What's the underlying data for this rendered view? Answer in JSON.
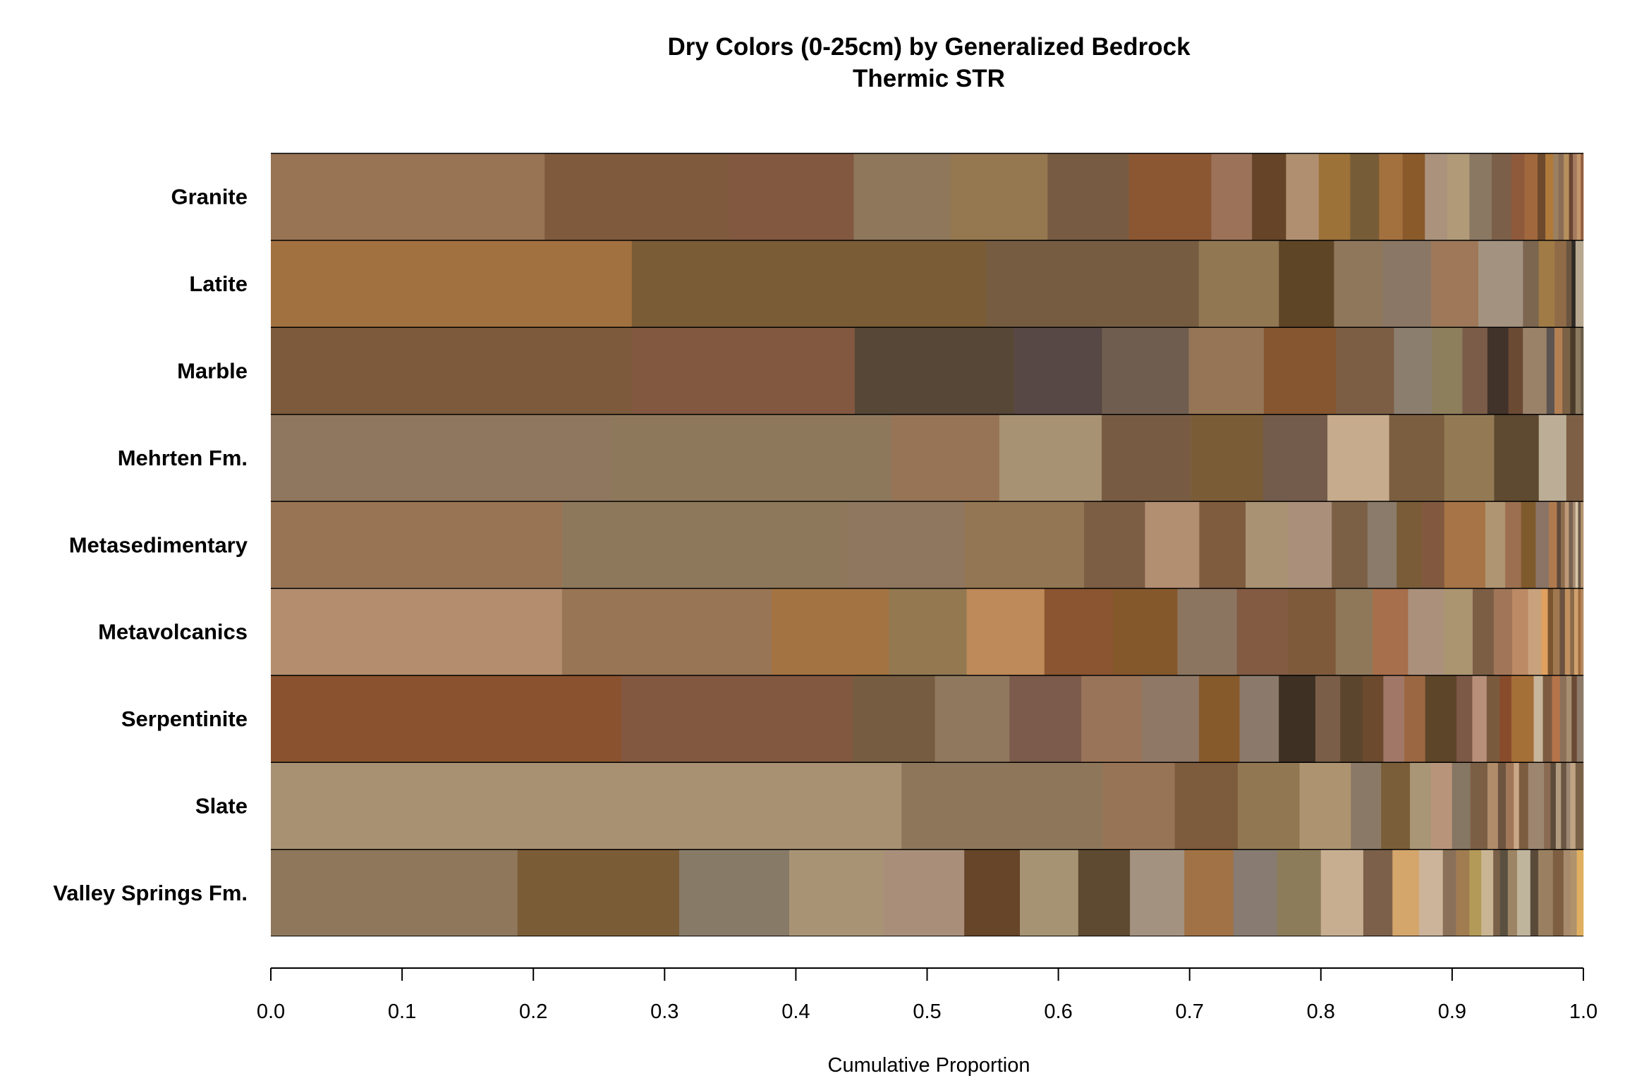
{
  "chart_data": {
    "type": "bar",
    "orientation": "horizontal-stacked",
    "title": "Dry Colors (0-25cm) by Generalized Bedrock",
    "subtitle": "Thermic STR",
    "xlabel": "Cumulative Proportion",
    "xlim": [
      0,
      1
    ],
    "xticks": [
      "0.0",
      "0.1",
      "0.2",
      "0.3",
      "0.4",
      "0.5",
      "0.6",
      "0.7",
      "0.8",
      "0.9",
      "1.0"
    ],
    "grid": false,
    "categories": [
      "Granite",
      "Latite",
      "Marble",
      "Mehrten Fm.",
      "Metasedimentary",
      "Metavolcanics",
      "Serpentinite",
      "Slate",
      "Valley Springs Fm."
    ],
    "stacks": [
      {
        "name": "Granite",
        "segments": [
          {
            "value": 0.209,
            "color": "#987454"
          },
          {
            "value": 0.141,
            "color": "#7f5a3c"
          },
          {
            "value": 0.095,
            "color": "#825841"
          },
          {
            "value": 0.074,
            "color": "#8f775c"
          },
          {
            "value": 0.074,
            "color": "#957750"
          },
          {
            "value": 0.062,
            "color": "#775b42"
          },
          {
            "value": 0.063,
            "color": "#8b5733"
          },
          {
            "value": 0.031,
            "color": "#9c7259"
          },
          {
            "value": 0.026,
            "color": "#654428"
          },
          {
            "value": 0.025,
            "color": "#b08f70"
          },
          {
            "value": 0.024,
            "color": "#9d7238"
          },
          {
            "value": 0.022,
            "color": "#775c38"
          },
          {
            "value": 0.018,
            "color": "#a3713e"
          },
          {
            "value": 0.017,
            "color": "#8a5a2b"
          },
          {
            "value": 0.017,
            "color": "#ab927c"
          },
          {
            "value": 0.017,
            "color": "#b09a78"
          },
          {
            "value": 0.017,
            "color": "#8a7862"
          },
          {
            "value": 0.015,
            "color": "#7c5f48"
          },
          {
            "value": 0.01,
            "color": "#8f5a3c"
          },
          {
            "value": 0.01,
            "color": "#a0683c"
          },
          {
            "value": 0.006,
            "color": "#6d4a2e"
          },
          {
            "value": 0.006,
            "color": "#b07a3a"
          },
          {
            "value": 0.004,
            "color": "#9a8060"
          },
          {
            "value": 0.004,
            "color": "#8a6d55"
          },
          {
            "value": 0.004,
            "color": "#b58f5c"
          },
          {
            "value": 0.003,
            "color": "#6a4530"
          },
          {
            "value": 0.003,
            "color": "#a47a60"
          },
          {
            "value": 0.003,
            "color": "#c3966a"
          },
          {
            "value": 0.002,
            "color": "#935e3e"
          }
        ]
      },
      {
        "name": "Latite",
        "segments": [
          {
            "value": 0.275,
            "color": "#a27140"
          },
          {
            "value": 0.27,
            "color": "#7a5c36"
          },
          {
            "value": 0.162,
            "color": "#765d42"
          },
          {
            "value": 0.061,
            "color": "#927753"
          },
          {
            "value": 0.042,
            "color": "#5e4526"
          },
          {
            "value": 0.037,
            "color": "#8f775c"
          },
          {
            "value": 0.037,
            "color": "#8a7765"
          },
          {
            "value": 0.036,
            "color": "#9e7859"
          },
          {
            "value": 0.034,
            "color": "#a39280"
          },
          {
            "value": 0.012,
            "color": "#7c6650"
          },
          {
            "value": 0.012,
            "color": "#a07b46"
          },
          {
            "value": 0.009,
            "color": "#8f6b48"
          },
          {
            "value": 0.004,
            "color": "#6a5540"
          },
          {
            "value": 0.003,
            "color": "#2f2a26"
          },
          {
            "value": 0.006,
            "color": "#b8a890"
          }
        ]
      },
      {
        "name": "Marble",
        "segments": [
          {
            "value": 0.275,
            "color": "#7d5a3b"
          },
          {
            "value": 0.169,
            "color": "#825841"
          },
          {
            "value": 0.121,
            "color": "#574736"
          },
          {
            "value": 0.067,
            "color": "#574745"
          },
          {
            "value": 0.066,
            "color": "#6f5e4f"
          },
          {
            "value": 0.057,
            "color": "#957556"
          },
          {
            "value": 0.055,
            "color": "#855630"
          },
          {
            "value": 0.044,
            "color": "#7c5e45"
          },
          {
            "value": 0.029,
            "color": "#8b7e6e"
          },
          {
            "value": 0.023,
            "color": "#8d7e5c"
          },
          {
            "value": 0.019,
            "color": "#7b5c49"
          },
          {
            "value": 0.016,
            "color": "#41322a"
          },
          {
            "value": 0.011,
            "color": "#6b4a33"
          },
          {
            "value": 0.018,
            "color": "#9a8268"
          },
          {
            "value": 0.006,
            "color": "#5c5450"
          },
          {
            "value": 0.006,
            "color": "#b38054"
          },
          {
            "value": 0.006,
            "color": "#7b6145"
          },
          {
            "value": 0.004,
            "color": "#4a3a2a"
          },
          {
            "value": 0.004,
            "color": "#8b7a60"
          },
          {
            "value": 0.002,
            "color": "#6a5b48"
          }
        ]
      },
      {
        "name": "Mehrten Fm.",
        "segments": [
          {
            "value": 0.259,
            "color": "#8f765e"
          },
          {
            "value": 0.214,
            "color": "#8e785c"
          },
          {
            "value": 0.082,
            "color": "#987456"
          },
          {
            "value": 0.078,
            "color": "#a89274"
          },
          {
            "value": 0.068,
            "color": "#775c43"
          },
          {
            "value": 0.055,
            "color": "#7a5c37"
          },
          {
            "value": 0.049,
            "color": "#735c4c"
          },
          {
            "value": 0.047,
            "color": "#c6ab8c"
          },
          {
            "value": 0.042,
            "color": "#7a5e3f"
          },
          {
            "value": 0.038,
            "color": "#937a55"
          },
          {
            "value": 0.034,
            "color": "#5e4a31"
          },
          {
            "value": 0.021,
            "color": "#bcad96"
          },
          {
            "value": 0.013,
            "color": "#7c5f45"
          }
        ]
      },
      {
        "name": "Metasedimentary",
        "segments": [
          {
            "value": 0.22,
            "color": "#987455"
          },
          {
            "value": 0.215,
            "color": "#8e785c"
          },
          {
            "value": 0.089,
            "color": "#8f765e"
          },
          {
            "value": 0.09,
            "color": "#937653"
          },
          {
            "value": 0.046,
            "color": "#7c5e45"
          },
          {
            "value": 0.041,
            "color": "#b38f72"
          },
          {
            "value": 0.035,
            "color": "#7f5c3e"
          },
          {
            "value": 0.032,
            "color": "#a99273"
          },
          {
            "value": 0.033,
            "color": "#aa8f7a"
          },
          {
            "value": 0.027,
            "color": "#7b6046"
          },
          {
            "value": 0.022,
            "color": "#8a7b6a"
          },
          {
            "value": 0.019,
            "color": "#7a5d38"
          },
          {
            "value": 0.017,
            "color": "#82593f"
          },
          {
            "value": 0.031,
            "color": "#a67446"
          },
          {
            "value": 0.015,
            "color": "#b09572"
          },
          {
            "value": 0.012,
            "color": "#9b6f50"
          },
          {
            "value": 0.011,
            "color": "#7f5a2d"
          },
          {
            "value": 0.01,
            "color": "#8b7466"
          },
          {
            "value": 0.006,
            "color": "#b07a4f"
          },
          {
            "value": 0.003,
            "color": "#5f4a3b"
          },
          {
            "value": 0.003,
            "color": "#8f6e4e"
          },
          {
            "value": 0.003,
            "color": "#c09a78"
          },
          {
            "value": 0.003,
            "color": "#786350"
          },
          {
            "value": 0.002,
            "color": "#a58a70"
          },
          {
            "value": 0.002,
            "color": "#d8c4a6"
          },
          {
            "value": 0.002,
            "color": "#6c5a48"
          },
          {
            "value": 0.002,
            "color": "#b69470"
          }
        ]
      },
      {
        "name": "Metavolcanics",
        "segments": [
          {
            "value": 0.221,
            "color": "#b38d6e"
          },
          {
            "value": 0.159,
            "color": "#987555"
          },
          {
            "value": 0.089,
            "color": "#a37342"
          },
          {
            "value": 0.059,
            "color": "#937850"
          },
          {
            "value": 0.059,
            "color": "#bf8a59"
          },
          {
            "value": 0.052,
            "color": "#8a5530"
          },
          {
            "value": 0.049,
            "color": "#85582c"
          },
          {
            "value": 0.045,
            "color": "#8c7560"
          },
          {
            "value": 0.039,
            "color": "#835a42"
          },
          {
            "value": 0.036,
            "color": "#7e5a3b"
          },
          {
            "value": 0.028,
            "color": "#8f785a"
          },
          {
            "value": 0.027,
            "color": "#a76f4b"
          },
          {
            "value": 0.027,
            "color": "#ab917c"
          },
          {
            "value": 0.022,
            "color": "#ab9470"
          },
          {
            "value": 0.016,
            "color": "#7c5e45"
          },
          {
            "value": 0.014,
            "color": "#a17658"
          },
          {
            "value": 0.012,
            "color": "#bc8a65"
          },
          {
            "value": 0.01,
            "color": "#c8a27c"
          },
          {
            "value": 0.005,
            "color": "#e0a060"
          },
          {
            "value": 0.004,
            "color": "#7a5530"
          },
          {
            "value": 0.005,
            "color": "#a07850"
          },
          {
            "value": 0.004,
            "color": "#6b5240"
          },
          {
            "value": 0.004,
            "color": "#c09060"
          },
          {
            "value": 0.003,
            "color": "#8a6a48"
          },
          {
            "value": 0.003,
            "color": "#d0a070"
          },
          {
            "value": 0.002,
            "color": "#9e6a3c"
          },
          {
            "value": 0.002,
            "color": "#b58a60"
          }
        ]
      },
      {
        "name": "Serpentinite",
        "segments": [
          {
            "value": 0.268,
            "color": "#8a522e"
          },
          {
            "value": 0.177,
            "color": "#825841"
          },
          {
            "value": 0.063,
            "color": "#765d42"
          },
          {
            "value": 0.057,
            "color": "#8f785e"
          },
          {
            "value": 0.055,
            "color": "#7c5b4c"
          },
          {
            "value": 0.046,
            "color": "#9a7459"
          },
          {
            "value": 0.044,
            "color": "#8f7866"
          },
          {
            "value": 0.031,
            "color": "#875a2b"
          },
          {
            "value": 0.03,
            "color": "#8b7a6b"
          },
          {
            "value": 0.028,
            "color": "#3e3023"
          },
          {
            "value": 0.019,
            "color": "#7a5e47"
          },
          {
            "value": 0.017,
            "color": "#5c452d"
          },
          {
            "value": 0.016,
            "color": "#6b4a2e"
          },
          {
            "value": 0.016,
            "color": "#a17868"
          },
          {
            "value": 0.016,
            "color": "#9a6742"
          },
          {
            "value": 0.024,
            "color": "#5c4528"
          },
          {
            "value": 0.012,
            "color": "#7c5847"
          },
          {
            "value": 0.011,
            "color": "#b8907a"
          },
          {
            "value": 0.01,
            "color": "#7a5a3c"
          },
          {
            "value": 0.009,
            "color": "#884c2c"
          },
          {
            "value": 0.017,
            "color": "#a56f38"
          },
          {
            "value": 0.007,
            "color": "#c8b69c"
          },
          {
            "value": 0.007,
            "color": "#7c5b40"
          },
          {
            "value": 0.006,
            "color": "#b5744a"
          },
          {
            "value": 0.005,
            "color": "#8c7058"
          },
          {
            "value": 0.004,
            "color": "#a88e70"
          },
          {
            "value": 0.004,
            "color": "#6a4a35"
          },
          {
            "value": 0.005,
            "color": "#8d7a68"
          }
        ]
      },
      {
        "name": "Slate",
        "segments": [
          {
            "value": 0.48,
            "color": "#a89072"
          },
          {
            "value": 0.153,
            "color": "#8e765b"
          },
          {
            "value": 0.055,
            "color": "#987456"
          },
          {
            "value": 0.048,
            "color": "#7d5b3d"
          },
          {
            "value": 0.047,
            "color": "#927852"
          },
          {
            "value": 0.039,
            "color": "#ad9370"
          },
          {
            "value": 0.023,
            "color": "#8a7966"
          },
          {
            "value": 0.022,
            "color": "#7a5e3a"
          },
          {
            "value": 0.016,
            "color": "#a89676"
          },
          {
            "value": 0.016,
            "color": "#b8957a"
          },
          {
            "value": 0.014,
            "color": "#867664"
          },
          {
            "value": 0.013,
            "color": "#7b5f45"
          },
          {
            "value": 0.008,
            "color": "#b08c6a"
          },
          {
            "value": 0.006,
            "color": "#6e5540"
          },
          {
            "value": 0.006,
            "color": "#a07758"
          },
          {
            "value": 0.004,
            "color": "#c9a888"
          },
          {
            "value": 0.007,
            "color": "#7c5d3f"
          },
          {
            "value": 0.012,
            "color": "#9d8670"
          },
          {
            "value": 0.005,
            "color": "#8a6a50"
          },
          {
            "value": 0.004,
            "color": "#5c4a3a"
          },
          {
            "value": 0.004,
            "color": "#b09a80"
          },
          {
            "value": 0.004,
            "color": "#6a5642"
          },
          {
            "value": 0.003,
            "color": "#9a8672"
          },
          {
            "value": 0.004,
            "color": "#c0a484"
          },
          {
            "value": 0.006,
            "color": "#7a6248"
          }
        ]
      },
      {
        "name": "Valley Springs Fm.",
        "segments": [
          {
            "value": 0.186,
            "color": "#8f775c"
          },
          {
            "value": 0.122,
            "color": "#7a5c37"
          },
          {
            "value": 0.083,
            "color": "#877a67"
          },
          {
            "value": 0.071,
            "color": "#a89375"
          },
          {
            "value": 0.061,
            "color": "#a98f7a"
          },
          {
            "value": 0.042,
            "color": "#664528"
          },
          {
            "value": 0.044,
            "color": "#a69373"
          },
          {
            "value": 0.039,
            "color": "#5e4a31"
          },
          {
            "value": 0.041,
            "color": "#a39280"
          },
          {
            "value": 0.037,
            "color": "#a17245"
          },
          {
            "value": 0.033,
            "color": "#877b72"
          },
          {
            "value": 0.033,
            "color": "#8d7c5a"
          },
          {
            "value": 0.032,
            "color": "#c7ae91"
          },
          {
            "value": 0.022,
            "color": "#7c6049"
          },
          {
            "value": 0.02,
            "color": "#d4a66c"
          },
          {
            "value": 0.018,
            "color": "#ccb49a"
          },
          {
            "value": 0.01,
            "color": "#8a7058"
          },
          {
            "value": 0.01,
            "color": "#a07c50"
          },
          {
            "value": 0.009,
            "color": "#b39a58"
          },
          {
            "value": 0.009,
            "color": "#c9b593"
          },
          {
            "value": 0.005,
            "color": "#7a6048"
          },
          {
            "value": 0.006,
            "color": "#5a5040"
          },
          {
            "value": 0.007,
            "color": "#9c8464"
          },
          {
            "value": 0.01,
            "color": "#bfb59d"
          },
          {
            "value": 0.006,
            "color": "#5a4a3a"
          },
          {
            "value": 0.011,
            "color": "#9a8060"
          },
          {
            "value": 0.008,
            "color": "#7d5e40"
          },
          {
            "value": 0.005,
            "color": "#a88a6c"
          },
          {
            "value": 0.005,
            "color": "#b0926c"
          },
          {
            "value": 0.005,
            "color": "#e0b060"
          }
        ]
      }
    ]
  }
}
